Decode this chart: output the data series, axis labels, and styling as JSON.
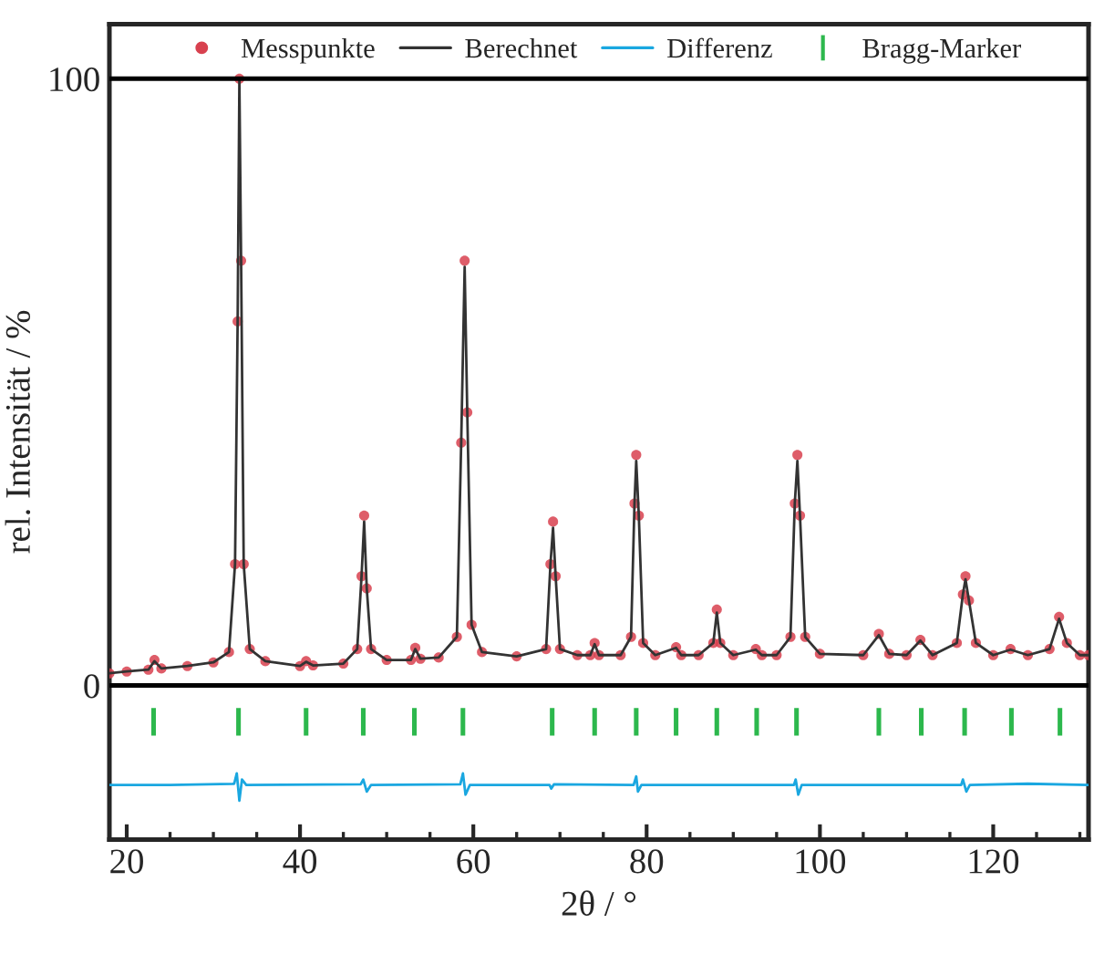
{
  "chart_data": {
    "type": "line",
    "xlabel": "2θ / °",
    "ylabel": "rel. Intensität / %",
    "xlim": [
      18,
      131
    ],
    "xticks": [
      20,
      40,
      60,
      80,
      100,
      120
    ],
    "ylim": [
      -25.4,
      109
    ],
    "yticks": [
      0,
      100
    ],
    "grid": false,
    "legend": "top",
    "ref_lines": [
      {
        "axis": "y",
        "value": 100,
        "color": "#000000",
        "line_style": "solid"
      },
      {
        "axis": "y",
        "value": 0,
        "color": "#000000",
        "line_style": "solid"
      }
    ],
    "series": [
      {
        "name": "Messpunkte",
        "type": "scatter",
        "marker": "circle",
        "color": "#d8414f",
        "x": [
          18,
          20,
          22.5,
          23.2,
          24,
          27,
          30,
          31.8,
          32.5,
          32.8,
          33.0,
          33.2,
          33.5,
          34.2,
          36,
          40,
          40.7,
          41.5,
          45,
          46.6,
          47.1,
          47.4,
          47.7,
          48.2,
          50,
          52.8,
          53.3,
          53.9,
          56,
          58.1,
          58.6,
          59.0,
          59.3,
          59.8,
          61,
          65,
          68.4,
          68.9,
          69.2,
          69.5,
          70,
          72,
          73.5,
          74.0,
          74.5,
          77,
          78.2,
          78.6,
          78.8,
          79.1,
          79.6,
          81,
          83.4,
          84,
          86,
          87.7,
          88.1,
          88.5,
          90,
          92.6,
          93.3,
          95,
          96.6,
          97.1,
          97.4,
          97.7,
          98.3,
          100,
          105,
          106.8,
          108,
          110,
          111.6,
          113,
          115.8,
          116.5,
          116.8,
          117.2,
          118,
          120,
          122,
          124,
          126.5,
          127.6,
          128.5,
          130,
          131
        ],
        "values": [
          2.0,
          2.3,
          2.6,
          4.2,
          2.8,
          3.2,
          3.8,
          5.5,
          20,
          60,
          100,
          70,
          20,
          6,
          4,
          3.2,
          4,
          3.3,
          3.6,
          6,
          18,
          28,
          16,
          6,
          4.2,
          4.2,
          6.2,
          4.4,
          4.6,
          8,
          40,
          70,
          45,
          10,
          5.5,
          4.8,
          6,
          20,
          27,
          18,
          6,
          5,
          5,
          7,
          5,
          5,
          8,
          30,
          38,
          28,
          7,
          5,
          6.3,
          5,
          5,
          7,
          12.5,
          7,
          5,
          6,
          5,
          5,
          8,
          30,
          38,
          28,
          8,
          5.2,
          5,
          8.5,
          5.2,
          5,
          7.5,
          5,
          7,
          15,
          18,
          14,
          7,
          5,
          6,
          5,
          6,
          11.3,
          7,
          5,
          5
        ]
      },
      {
        "name": "Berechnet",
        "marker": "none",
        "line_style": "solid",
        "color": "#333333",
        "x": [
          18,
          20,
          22.5,
          23.2,
          24,
          27,
          30,
          31.8,
          32.5,
          32.8,
          33.0,
          33.2,
          33.5,
          34.2,
          36,
          40,
          40.7,
          41.5,
          45,
          46.6,
          47.1,
          47.4,
          47.7,
          48.2,
          50,
          52.8,
          53.3,
          53.9,
          56,
          58.1,
          58.6,
          59.0,
          59.3,
          59.8,
          61,
          65,
          68.4,
          68.9,
          69.2,
          69.5,
          70,
          72,
          73.5,
          74.0,
          74.5,
          77,
          78.2,
          78.6,
          78.8,
          79.1,
          79.6,
          81,
          83.4,
          84,
          86,
          87.7,
          88.1,
          88.5,
          90,
          92.6,
          93.3,
          95,
          96.6,
          97.1,
          97.4,
          97.7,
          98.3,
          100,
          105,
          106.8,
          108,
          110,
          111.6,
          113,
          115.8,
          116.5,
          116.8,
          117.2,
          118,
          120,
          122,
          124,
          126.5,
          127.6,
          128.5,
          130,
          131
        ],
        "values": [
          2.0,
          2.3,
          2.6,
          4.0,
          2.8,
          3.2,
          3.8,
          5.5,
          20,
          60,
          100,
          70,
          20,
          6,
          4,
          3.2,
          3.9,
          3.3,
          3.6,
          6,
          18,
          27,
          16,
          6,
          4.2,
          4.2,
          6.0,
          4.4,
          4.6,
          8,
          40,
          69,
          45,
          10,
          5.5,
          4.8,
          6,
          20,
          26,
          18,
          6,
          5,
          5,
          6.8,
          5,
          5,
          8,
          30,
          37,
          28,
          7,
          5,
          6.2,
          5,
          5,
          7,
          12,
          7,
          5,
          5.9,
          5,
          5,
          8,
          30,
          37,
          28,
          8,
          5.2,
          5,
          8.3,
          5.2,
          5,
          7.4,
          5,
          7,
          15,
          17.5,
          14,
          7,
          5,
          5.9,
          5,
          6,
          11,
          7,
          5,
          5
        ]
      },
      {
        "name": "Differenz",
        "type": "line",
        "marker": "none",
        "line_style": "solid",
        "color": "#1aa7e0",
        "x": [
          18,
          25,
          32.4,
          32.7,
          33.0,
          33.3,
          33.8,
          47.0,
          47.3,
          47.7,
          48.2,
          58.5,
          58.8,
          59.1,
          59.6,
          68.8,
          69.0,
          69.3,
          78.5,
          78.8,
          79.0,
          79.4,
          97.0,
          97.2,
          97.5,
          97.9,
          116.3,
          116.5,
          116.9,
          117.3,
          124,
          131
        ],
        "values": [
          -16.4,
          -16.4,
          -16.2,
          -14.5,
          -19,
          -15.5,
          -16.4,
          -16.3,
          -15.5,
          -17.5,
          -16.4,
          -16.3,
          -14.5,
          -18,
          -16.4,
          -16.4,
          -17,
          -16.3,
          -16.4,
          -15,
          -17.5,
          -16.4,
          -16.4,
          -15.5,
          -18,
          -16.4,
          -16.4,
          -15.5,
          -17.5,
          -16.4,
          -16.2,
          -16.4
        ]
      },
      {
        "name": "Bragg-Marker",
        "type": "bar",
        "color": "#2db84d",
        "base": [
          -8.1,
          -8.1,
          -8.1,
          -8.1,
          -8.1,
          -8.1,
          -8.1,
          -8.1,
          -8.1,
          -8.1,
          -8.1,
          -8.1,
          -8.1,
          -8.1,
          -8.1,
          -8.1,
          -8.1,
          -8.1
        ],
        "x": [
          23.1,
          32.9,
          40.7,
          47.3,
          53.2,
          58.8,
          69.1,
          74.0,
          78.8,
          83.4,
          88.1,
          92.7,
          97.3,
          106.8,
          111.7,
          116.7,
          122.1,
          127.7
        ],
        "values": [
          4.2,
          4.2,
          4.2,
          4.2,
          4.2,
          4.2,
          4.2,
          4.2,
          4.2,
          4.2,
          4.2,
          4.2,
          4.2,
          4.2,
          4.2,
          4.2,
          4.2,
          4.2
        ]
      }
    ]
  }
}
